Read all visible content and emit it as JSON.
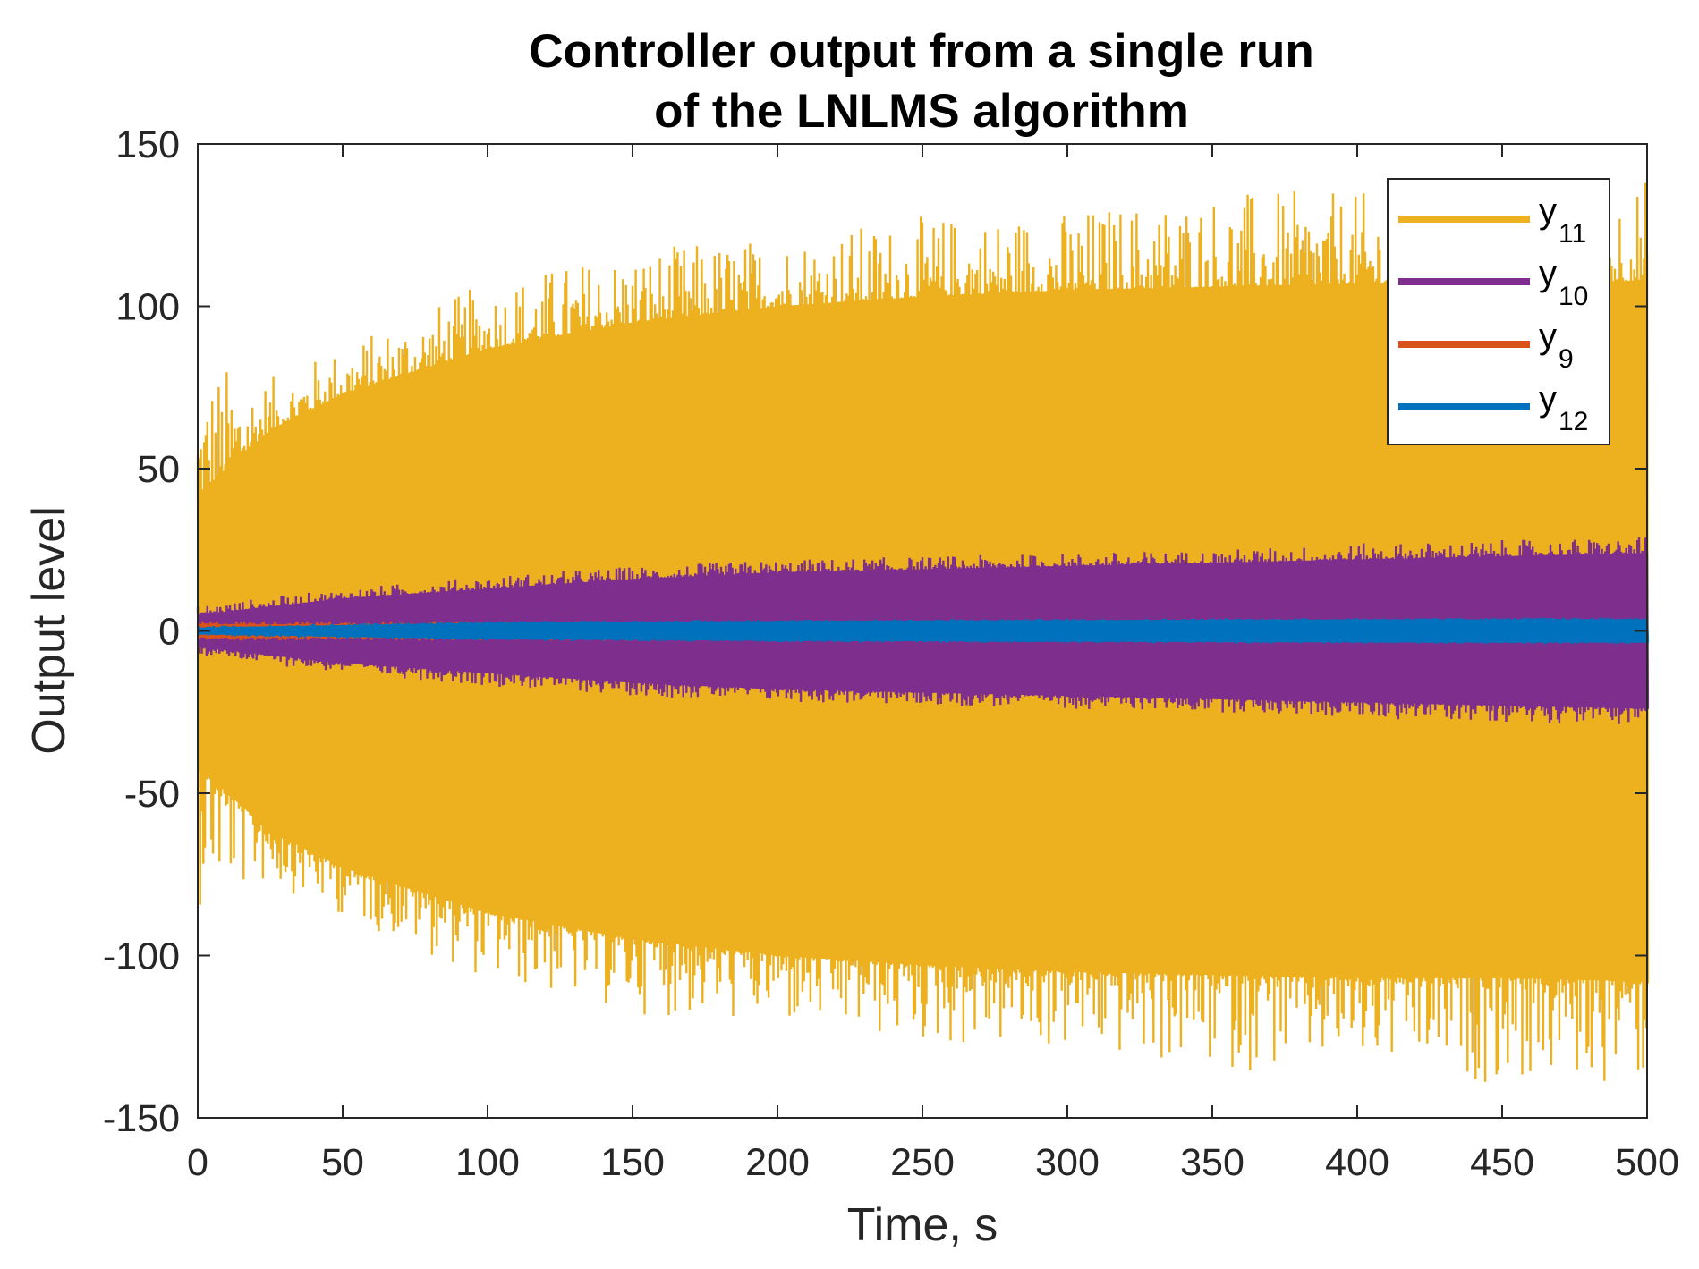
{
  "chart_data": {
    "type": "line",
    "title": [
      "Controller output from a single run",
      "of the LNLMS algorithm"
    ],
    "xlabel": "Time, s",
    "ylabel": "Output level",
    "xlim": [
      0,
      500
    ],
    "ylim": [
      -150,
      150
    ],
    "xticks": [
      0,
      50,
      100,
      150,
      200,
      250,
      300,
      350,
      400,
      450,
      500
    ],
    "yticks": [
      150,
      100,
      50,
      0,
      -50,
      -100,
      -150
    ],
    "grid": false,
    "legend_position": "top-right",
    "series": [
      {
        "name": "y11",
        "base": "y",
        "subscript": "11",
        "color": "#EDB120",
        "envelope_time": [
          0,
          25,
          50,
          100,
          150,
          200,
          250,
          300,
          350,
          400,
          450,
          500
        ],
        "envelope_typical": [
          42,
          62,
          73,
          87,
          95,
          100,
          103,
          105,
          106,
          107,
          107,
          108
        ],
        "envelope_peak": [
          85,
          78,
          88,
          108,
          118,
          122,
          128,
          130,
          136,
          135,
          140,
          140
        ]
      },
      {
        "name": "y10",
        "base": "y",
        "subscript": "10",
        "color": "#7E2F8E",
        "envelope_time": [
          0,
          50,
          100,
          150,
          200,
          250,
          300,
          350,
          400,
          450,
          500
        ],
        "envelope_typical": [
          5,
          10,
          13,
          16,
          18,
          19,
          20,
          21,
          22,
          23,
          24
        ],
        "envelope_peak": [
          8,
          13,
          17,
          20,
          22,
          23,
          24,
          25,
          27,
          28,
          29
        ]
      },
      {
        "name": "y9",
        "base": "y",
        "subscript": "9",
        "color": "#D95319",
        "envelope_time": [
          0,
          100,
          200,
          300,
          400,
          500
        ],
        "envelope_typical": [
          2,
          2,
          2,
          2,
          2,
          2
        ],
        "envelope_peak": [
          3,
          3,
          3,
          3,
          3,
          3
        ]
      },
      {
        "name": "y12",
        "base": "y",
        "subscript": "12",
        "color": "#0072BD",
        "envelope_time": [
          0,
          100,
          200,
          300,
          400,
          500
        ],
        "envelope_typical": [
          1,
          2.5,
          3,
          3.3,
          3.5,
          3.6
        ],
        "envelope_peak": [
          1.5,
          3,
          3.5,
          3.8,
          4,
          4.2
        ]
      }
    ]
  }
}
